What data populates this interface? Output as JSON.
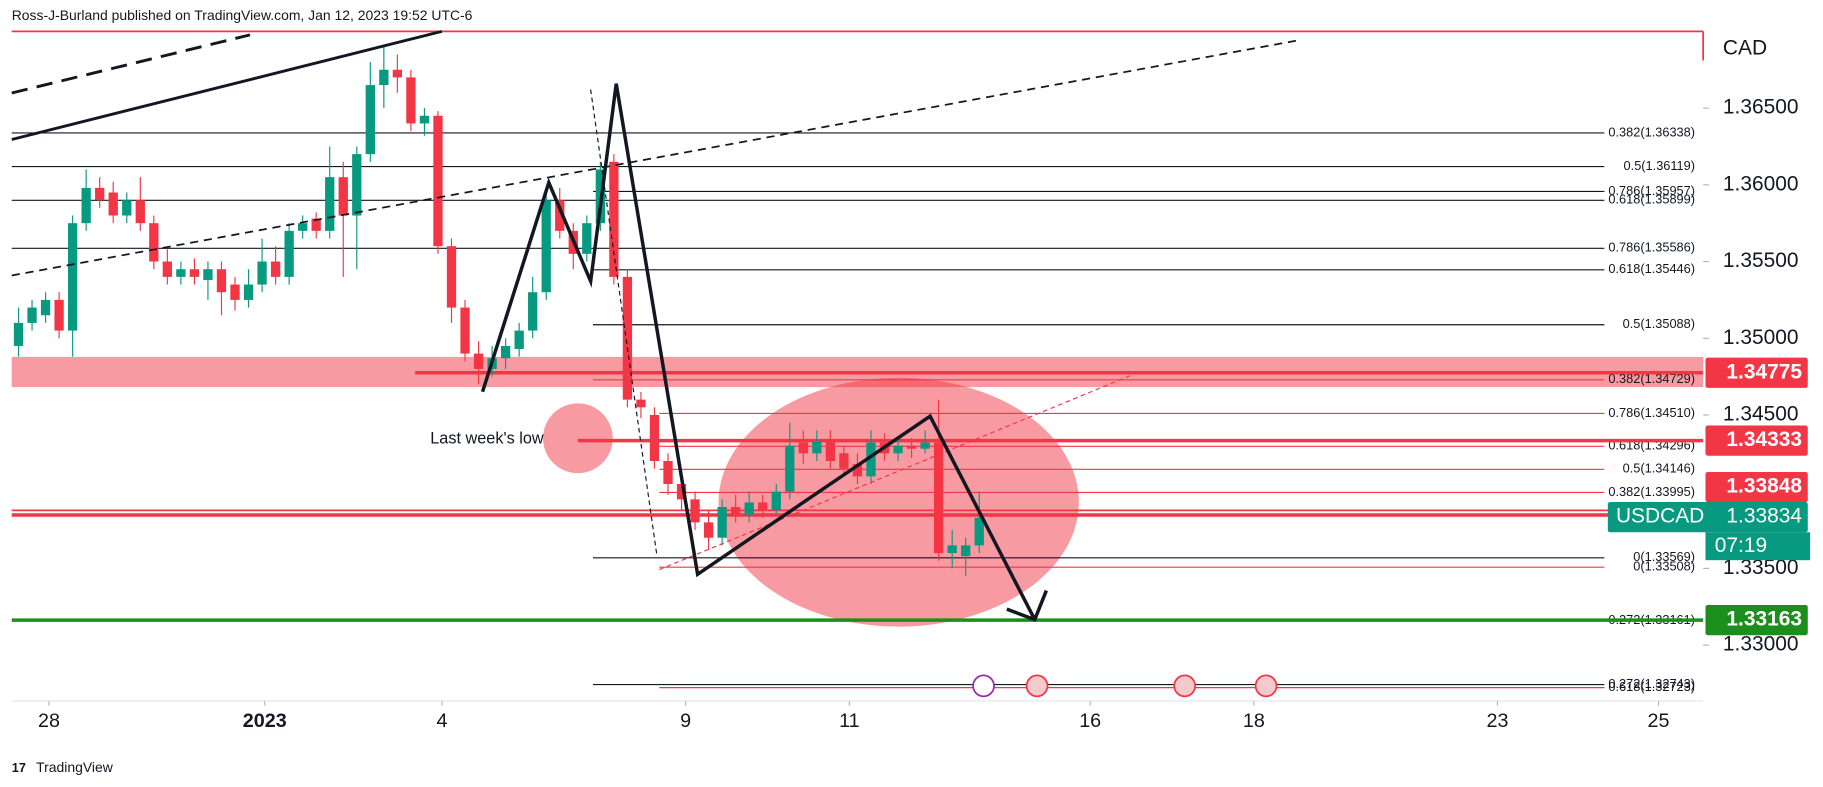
{
  "header": {
    "text": "Ross-J-Burland published on TradingView.com, Jan 12, 2023 19:52 UTC-6",
    "footer": "TradingView"
  },
  "chart_data": {
    "type": "candlestick",
    "currency": "CAD",
    "up_color": "#089981",
    "down_color": "#f23645",
    "ylim": [
      1.32636,
      1.37
    ],
    "yticks": [
      {
        "value": 1.365,
        "label": "1.36500"
      },
      {
        "value": 1.36,
        "label": "1.36000"
      },
      {
        "value": 1.355,
        "label": "1.35500"
      },
      {
        "value": 1.35,
        "label": "1.35000"
      },
      {
        "value": 1.345,
        "label": "1.34500"
      },
      {
        "value": 1.335,
        "label": "1.33500"
      },
      {
        "value": 1.33,
        "label": "1.33000"
      }
    ],
    "xlim": [
      0,
      125
    ],
    "xticks": [
      {
        "value": 2.75,
        "label": "28"
      },
      {
        "value": 18.7,
        "label": "2023"
      },
      {
        "value": 31.8,
        "label": "4"
      },
      {
        "value": 49.8,
        "label": "9"
      },
      {
        "value": 61.9,
        "label": "11"
      },
      {
        "value": 79.7,
        "label": "16"
      },
      {
        "value": 91.8,
        "label": "18"
      },
      {
        "value": 109.8,
        "label": "23"
      },
      {
        "value": 121.7,
        "label": "25"
      }
    ],
    "ohlc": [
      [
        1.3495,
        1.352,
        1.3488,
        1.351
      ],
      [
        1.351,
        1.3525,
        1.3505,
        1.352
      ],
      [
        1.3515,
        1.353,
        1.351,
        1.3525
      ],
      [
        1.3525,
        1.353,
        1.35,
        1.3505
      ],
      [
        1.3505,
        1.358,
        1.3488,
        1.3575
      ],
      [
        1.3575,
        1.361,
        1.357,
        1.3598
      ],
      [
        1.3598,
        1.3605,
        1.3585,
        1.359
      ],
      [
        1.3595,
        1.3602,
        1.3575,
        1.358
      ],
      [
        1.358,
        1.3595,
        1.3575,
        1.359
      ],
      [
        1.359,
        1.3605,
        1.357,
        1.3575
      ],
      [
        1.3575,
        1.358,
        1.3545,
        1.355
      ],
      [
        1.355,
        1.3558,
        1.3535,
        1.354
      ],
      [
        1.354,
        1.355,
        1.3535,
        1.3545
      ],
      [
        1.3545,
        1.3552,
        1.3535,
        1.354
      ],
      [
        1.3538,
        1.355,
        1.3525,
        1.3545
      ],
      [
        1.3545,
        1.355,
        1.3515,
        1.353
      ],
      [
        1.3535,
        1.354,
        1.3518,
        1.3525
      ],
      [
        1.3525,
        1.3545,
        1.352,
        1.3535
      ],
      [
        1.3535,
        1.3565,
        1.353,
        1.355
      ],
      [
        1.355,
        1.356,
        1.3535,
        1.354
      ],
      [
        1.354,
        1.3575,
        1.3535,
        1.357
      ],
      [
        1.357,
        1.358,
        1.3565,
        1.3575
      ],
      [
        1.3578,
        1.3582,
        1.3565,
        1.357
      ],
      [
        1.357,
        1.3625,
        1.3565,
        1.3605
      ],
      [
        1.3605,
        1.3615,
        1.354,
        1.358
      ],
      [
        1.358,
        1.3625,
        1.3545,
        1.362
      ],
      [
        1.362,
        1.368,
        1.3615,
        1.3665
      ],
      [
        1.3665,
        1.369,
        1.365,
        1.3675
      ],
      [
        1.3675,
        1.3685,
        1.366,
        1.367
      ],
      [
        1.367,
        1.3675,
        1.3635,
        1.364
      ],
      [
        1.364,
        1.365,
        1.3632,
        1.3645
      ],
      [
        1.3645,
        1.3648,
        1.3555,
        1.356
      ],
      [
        1.356,
        1.3565,
        1.351,
        1.352
      ],
      [
        1.352,
        1.3525,
        1.3485,
        1.349
      ],
      [
        1.349,
        1.3498,
        1.347,
        1.348
      ],
      [
        1.348,
        1.3495,
        1.3475,
        1.3487
      ],
      [
        1.3487,
        1.35,
        1.348,
        1.3495
      ],
      [
        1.3493,
        1.351,
        1.3488,
        1.3505
      ],
      [
        1.3505,
        1.354,
        1.35,
        1.353
      ],
      [
        1.353,
        1.3595,
        1.3525,
        1.359
      ],
      [
        1.359,
        1.3598,
        1.3565,
        1.357
      ],
      [
        1.357,
        1.3575,
        1.3545,
        1.3555
      ],
      [
        1.3555,
        1.358,
        1.355,
        1.3575
      ],
      [
        1.3575,
        1.3615,
        1.357,
        1.361
      ],
      [
        1.3615,
        1.362,
        1.3535,
        1.354
      ],
      [
        1.354,
        1.3545,
        1.3455,
        1.346
      ],
      [
        1.346,
        1.3465,
        1.3448,
        1.3455
      ],
      [
        1.345,
        1.3455,
        1.3415,
        1.342
      ],
      [
        1.342,
        1.3425,
        1.3398,
        1.3405
      ],
      [
        1.3405,
        1.341,
        1.3388,
        1.3395
      ],
      [
        1.3395,
        1.34,
        1.3375,
        1.338
      ],
      [
        1.338,
        1.3388,
        1.3362,
        1.337
      ],
      [
        1.337,
        1.3395,
        1.3365,
        1.339
      ],
      [
        1.339,
        1.3398,
        1.338,
        1.3385
      ],
      [
        1.3385,
        1.34,
        1.338,
        1.3393
      ],
      [
        1.3393,
        1.3398,
        1.3383,
        1.3388
      ],
      [
        1.3388,
        1.3405,
        1.3385,
        1.34
      ],
      [
        1.34,
        1.3445,
        1.3395,
        1.343
      ],
      [
        1.3432,
        1.344,
        1.3418,
        1.3425
      ],
      [
        1.3425,
        1.344,
        1.342,
        1.3433
      ],
      [
        1.3433,
        1.344,
        1.3415,
        1.342
      ],
      [
        1.3425,
        1.343,
        1.341,
        1.3415
      ],
      [
        1.3418,
        1.3425,
        1.3405,
        1.341
      ],
      [
        1.341,
        1.344,
        1.3405,
        1.3432
      ],
      [
        1.3432,
        1.3438,
        1.342,
        1.3425
      ],
      [
        1.3425,
        1.3435,
        1.342,
        1.343
      ],
      [
        1.343,
        1.3435,
        1.3422,
        1.3428
      ],
      [
        1.3428,
        1.344,
        1.3425,
        1.3432
      ],
      [
        1.3432,
        1.346,
        1.3355,
        1.336
      ],
      [
        1.336,
        1.3375,
        1.335,
        1.3365
      ],
      [
        1.3358,
        1.337,
        1.3345,
        1.3365
      ],
      [
        1.3365,
        1.34,
        1.336,
        1.3383
      ]
    ],
    "fib_levels": [
      {
        "price": 1.36338,
        "label": "0.382(1.36338)",
        "color": "#131722"
      },
      {
        "price": 1.36119,
        "label": "0.5(1.36119)",
        "color": "#131722"
      },
      {
        "price": 1.35957,
        "label": "0.786(1.35957)",
        "color": "#131722"
      },
      {
        "price": 1.35899,
        "label": "0.618(1.35899)",
        "color": "#131722"
      },
      {
        "price": 1.35586,
        "label": "0.786(1.35586)",
        "color": "#131722"
      },
      {
        "price": 1.35446,
        "label": "0.618(1.35446)",
        "color": "#131722"
      },
      {
        "price": 1.35088,
        "label": "0.5(1.35088)",
        "color": "#131722"
      },
      {
        "price": 1.34729,
        "label": "0.382(1.34729)",
        "color": "#f23645"
      },
      {
        "price": 1.3451,
        "label": "0.786(1.34510)",
        "color": "#f23645"
      },
      {
        "price": 1.34296,
        "label": "0.618(1.34296)",
        "color": "#f23645"
      },
      {
        "price": 1.34146,
        "label": "0.5(1.34146)",
        "color": "#f23645"
      },
      {
        "price": 1.33995,
        "label": "0.382(1.33995)",
        "color": "#f23645"
      },
      {
        "price": 1.33569,
        "label": "0(1.33569)",
        "color": "#131722"
      },
      {
        "price": 1.33508,
        "label": "0(1.33508)",
        "color": "#f23645"
      },
      {
        "price": 1.33161,
        "label": "0.272(1.33161)",
        "color": "#f23645"
      },
      {
        "price": 1.32743,
        "label": "0.272(1.32743)",
        "color": "#131722"
      },
      {
        "price": 1.32723,
        "label": "0.618(1.32723)",
        "color": "#f23645"
      }
    ],
    "price_tags": [
      {
        "price": 1.34775,
        "color": "#f23645"
      },
      {
        "price": 1.34333,
        "color": "#f23645"
      },
      {
        "price": 1.33848,
        "color": "#f23645"
      },
      {
        "price": 1.33163,
        "color": "#1b8e1b"
      }
    ],
    "symbol_tag": {
      "symbol": "USDCAD",
      "price": 1.33834,
      "countdown": "07:19",
      "color": "#089981"
    },
    "annotation": "Last week's low"
  }
}
